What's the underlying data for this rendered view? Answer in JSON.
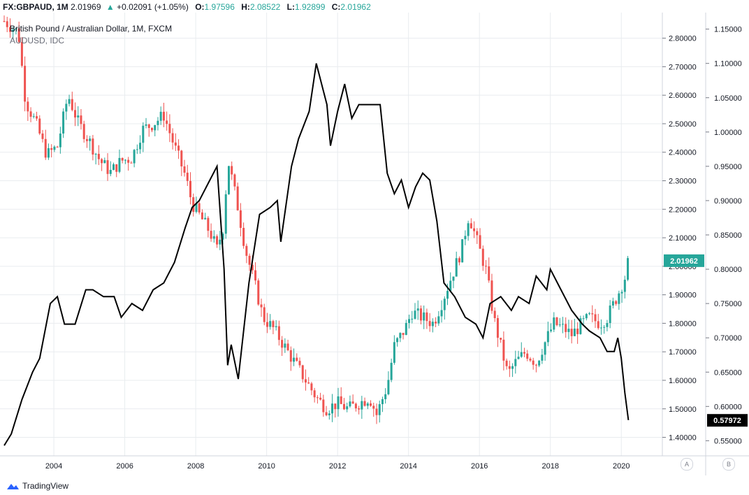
{
  "header": {
    "symbol": "FX:GBPAUD, 1M",
    "last": "2.01969",
    "change_arrow": "▲",
    "change": "+0.02091 (+1.05%)",
    "o_label": "O:",
    "o_value": "1.97596",
    "h_label": "H:",
    "h_value": "2.08522",
    "l_label": "L:",
    "l_value": "1.92899",
    "c_label": "C:",
    "c_value": "2.01962"
  },
  "legend": {
    "line1": "British Pound / Australian Dollar, 1M, FXCM",
    "line2": "AUDUSD, IDC"
  },
  "footer": {
    "brand": "TradingView",
    "icon": "tradingview-cloud-icon"
  },
  "scale_buttons": {
    "a": "A",
    "b": "B"
  },
  "colors": {
    "up": "#26a69a",
    "down": "#ef5350",
    "overlay": "#000000",
    "grid": "#e9ecef",
    "last_badge": "#26a69a"
  },
  "chart_data": {
    "type": "candlestick+line",
    "title": "British Pound / Australian Dollar, 1M, FXCM",
    "x_range": [
      2002.6,
      2021.0
    ],
    "x_ticks": [
      "2004",
      "2006",
      "2008",
      "2010",
      "2012",
      "2014",
      "2016",
      "2018",
      "2020"
    ],
    "x_tick_values": [
      2004,
      2006,
      2008,
      2010,
      2012,
      2014,
      2016,
      2018,
      2020
    ],
    "right_axis": {
      "name": "GBPAUD",
      "range": [
        1.34,
        2.88
      ],
      "ticks": [
        "1.40000",
        "1.50000",
        "1.60000",
        "1.70000",
        "1.80000",
        "1.90000",
        "2.00000",
        "2.10000",
        "2.20000",
        "2.30000",
        "2.40000",
        "2.50000",
        "2.60000",
        "2.70000",
        "2.80000"
      ],
      "tick_values": [
        1.4,
        1.5,
        1.6,
        1.7,
        1.8,
        1.9,
        2.0,
        2.1,
        2.2,
        2.3,
        2.4,
        2.5,
        2.6,
        2.7,
        2.8
      ],
      "last_label": "2.01962",
      "last_value": 2.01962
    },
    "far_right_axis": {
      "name": "AUDUSD",
      "range": [
        0.53,
        1.17
      ],
      "ticks": [
        "0.55000",
        "0.60000",
        "0.65000",
        "0.70000",
        "0.75000",
        "0.80000",
        "0.85000",
        "0.90000",
        "0.95000",
        "1.00000",
        "1.05000",
        "1.10000",
        "1.15000"
      ],
      "tick_values": [
        0.55,
        0.6,
        0.65,
        0.7,
        0.75,
        0.8,
        0.85,
        0.9,
        0.95,
        1.0,
        1.05,
        1.1,
        1.15
      ],
      "last_label": "0.57972",
      "last_value": 0.57972
    },
    "gbpaud_closes": [
      {
        "t": 2002.6,
        "c": 2.86
      },
      {
        "t": 2003.0,
        "c": 2.82
      },
      {
        "t": 2003.2,
        "c": 2.58
      },
      {
        "t": 2003.5,
        "c": 2.5
      },
      {
        "t": 2003.8,
        "c": 2.39
      },
      {
        "t": 2004.1,
        "c": 2.42
      },
      {
        "t": 2004.4,
        "c": 2.6
      },
      {
        "t": 2004.7,
        "c": 2.5
      },
      {
        "t": 2005.0,
        "c": 2.44
      },
      {
        "t": 2005.3,
        "c": 2.37
      },
      {
        "t": 2005.6,
        "c": 2.33
      },
      {
        "t": 2005.9,
        "c": 2.37
      },
      {
        "t": 2006.2,
        "c": 2.38
      },
      {
        "t": 2006.5,
        "c": 2.48
      },
      {
        "t": 2006.8,
        "c": 2.5
      },
      {
        "t": 2007.1,
        "c": 2.53
      },
      {
        "t": 2007.4,
        "c": 2.42
      },
      {
        "t": 2007.7,
        "c": 2.32
      },
      {
        "t": 2007.9,
        "c": 2.22
      },
      {
        "t": 2008.1,
        "c": 2.18
      },
      {
        "t": 2008.4,
        "c": 2.12
      },
      {
        "t": 2008.6,
        "c": 2.06
      },
      {
        "t": 2008.8,
        "c": 2.15
      },
      {
        "t": 2008.9,
        "c": 2.38
      },
      {
        "t": 2009.2,
        "c": 2.2
      },
      {
        "t": 2009.4,
        "c": 2.06
      },
      {
        "t": 2009.7,
        "c": 1.92
      },
      {
        "t": 2009.9,
        "c": 1.82
      },
      {
        "t": 2010.2,
        "c": 1.78
      },
      {
        "t": 2010.5,
        "c": 1.72
      },
      {
        "t": 2010.8,
        "c": 1.66
      },
      {
        "t": 2011.1,
        "c": 1.6
      },
      {
        "t": 2011.4,
        "c": 1.54
      },
      {
        "t": 2011.7,
        "c": 1.5
      },
      {
        "t": 2012.0,
        "c": 1.52
      },
      {
        "t": 2012.3,
        "c": 1.5
      },
      {
        "t": 2012.6,
        "c": 1.52
      },
      {
        "t": 2012.9,
        "c": 1.54
      },
      {
        "t": 2013.1,
        "c": 1.48
      },
      {
        "t": 2013.4,
        "c": 1.58
      },
      {
        "t": 2013.6,
        "c": 1.72
      },
      {
        "t": 2013.9,
        "c": 1.78
      },
      {
        "t": 2014.1,
        "c": 1.84
      },
      {
        "t": 2014.4,
        "c": 1.82
      },
      {
        "t": 2014.7,
        "c": 1.8
      },
      {
        "t": 2014.9,
        "c": 1.86
      },
      {
        "t": 2015.2,
        "c": 1.96
      },
      {
        "t": 2015.5,
        "c": 2.06
      },
      {
        "t": 2015.7,
        "c": 2.18
      },
      {
        "t": 2015.9,
        "c": 2.1
      },
      {
        "t": 2016.2,
        "c": 1.98
      },
      {
        "t": 2016.4,
        "c": 1.82
      },
      {
        "t": 2016.6,
        "c": 1.72
      },
      {
        "t": 2016.8,
        "c": 1.62
      },
      {
        "t": 2017.0,
        "c": 1.66
      },
      {
        "t": 2017.3,
        "c": 1.7
      },
      {
        "t": 2017.6,
        "c": 1.66
      },
      {
        "t": 2017.8,
        "c": 1.72
      },
      {
        "t": 2018.1,
        "c": 1.8
      },
      {
        "t": 2018.4,
        "c": 1.78
      },
      {
        "t": 2018.6,
        "c": 1.76
      },
      {
        "t": 2018.9,
        "c": 1.8
      },
      {
        "t": 2019.1,
        "c": 1.82
      },
      {
        "t": 2019.4,
        "c": 1.8
      },
      {
        "t": 2019.6,
        "c": 1.82
      },
      {
        "t": 2019.9,
        "c": 1.9
      },
      {
        "t": 2020.1,
        "c": 1.96
      },
      {
        "t": 2020.2,
        "c": 2.02
      }
    ],
    "audusd": [
      {
        "t": 2002.6,
        "v": 0.543
      },
      {
        "t": 2002.8,
        "v": 0.56
      },
      {
        "t": 2003.1,
        "v": 0.61
      },
      {
        "t": 2003.4,
        "v": 0.65
      },
      {
        "t": 2003.6,
        "v": 0.67
      },
      {
        "t": 2003.9,
        "v": 0.75
      },
      {
        "t": 2004.1,
        "v": 0.76
      },
      {
        "t": 2004.3,
        "v": 0.72
      },
      {
        "t": 2004.6,
        "v": 0.72
      },
      {
        "t": 2004.9,
        "v": 0.77
      },
      {
        "t": 2005.1,
        "v": 0.77
      },
      {
        "t": 2005.4,
        "v": 0.76
      },
      {
        "t": 2005.7,
        "v": 0.76
      },
      {
        "t": 2005.9,
        "v": 0.73
      },
      {
        "t": 2006.2,
        "v": 0.75
      },
      {
        "t": 2006.5,
        "v": 0.74
      },
      {
        "t": 2006.8,
        "v": 0.77
      },
      {
        "t": 2007.1,
        "v": 0.78
      },
      {
        "t": 2007.4,
        "v": 0.81
      },
      {
        "t": 2007.7,
        "v": 0.86
      },
      {
        "t": 2007.9,
        "v": 0.89
      },
      {
        "t": 2008.1,
        "v": 0.9
      },
      {
        "t": 2008.4,
        "v": 0.93
      },
      {
        "t": 2008.6,
        "v": 0.95
      },
      {
        "t": 2008.8,
        "v": 0.8
      },
      {
        "t": 2008.9,
        "v": 0.66
      },
      {
        "t": 2009.0,
        "v": 0.69
      },
      {
        "t": 2009.2,
        "v": 0.64
      },
      {
        "t": 2009.5,
        "v": 0.78
      },
      {
        "t": 2009.8,
        "v": 0.88
      },
      {
        "t": 2010.1,
        "v": 0.89
      },
      {
        "t": 2010.3,
        "v": 0.9
      },
      {
        "t": 2010.4,
        "v": 0.84
      },
      {
        "t": 2010.7,
        "v": 0.95
      },
      {
        "t": 2010.9,
        "v": 0.99
      },
      {
        "t": 2011.2,
        "v": 1.03
      },
      {
        "t": 2011.4,
        "v": 1.1
      },
      {
        "t": 2011.6,
        "v": 1.06
      },
      {
        "t": 2011.7,
        "v": 1.04
      },
      {
        "t": 2011.8,
        "v": 0.98
      },
      {
        "t": 2012.0,
        "v": 1.03
      },
      {
        "t": 2012.2,
        "v": 1.07
      },
      {
        "t": 2012.4,
        "v": 1.02
      },
      {
        "t": 2012.6,
        "v": 1.04
      },
      {
        "t": 2012.8,
        "v": 1.04
      },
      {
        "t": 2013.0,
        "v": 1.04
      },
      {
        "t": 2013.2,
        "v": 1.04
      },
      {
        "t": 2013.4,
        "v": 0.94
      },
      {
        "t": 2013.6,
        "v": 0.91
      },
      {
        "t": 2013.8,
        "v": 0.93
      },
      {
        "t": 2014.0,
        "v": 0.89
      },
      {
        "t": 2014.2,
        "v": 0.92
      },
      {
        "t": 2014.4,
        "v": 0.94
      },
      {
        "t": 2014.6,
        "v": 0.93
      },
      {
        "t": 2014.8,
        "v": 0.87
      },
      {
        "t": 2015.0,
        "v": 0.78
      },
      {
        "t": 2015.3,
        "v": 0.76
      },
      {
        "t": 2015.6,
        "v": 0.73
      },
      {
        "t": 2015.9,
        "v": 0.72
      },
      {
        "t": 2016.1,
        "v": 0.7
      },
      {
        "t": 2016.3,
        "v": 0.75
      },
      {
        "t": 2016.6,
        "v": 0.76
      },
      {
        "t": 2016.9,
        "v": 0.74
      },
      {
        "t": 2017.1,
        "v": 0.76
      },
      {
        "t": 2017.4,
        "v": 0.75
      },
      {
        "t": 2017.6,
        "v": 0.79
      },
      {
        "t": 2017.9,
        "v": 0.77
      },
      {
        "t": 2018.0,
        "v": 0.8
      },
      {
        "t": 2018.3,
        "v": 0.77
      },
      {
        "t": 2018.6,
        "v": 0.74
      },
      {
        "t": 2018.9,
        "v": 0.72
      },
      {
        "t": 2019.1,
        "v": 0.71
      },
      {
        "t": 2019.4,
        "v": 0.7
      },
      {
        "t": 2019.6,
        "v": 0.68
      },
      {
        "t": 2019.8,
        "v": 0.68
      },
      {
        "t": 2019.9,
        "v": 0.7
      },
      {
        "t": 2020.0,
        "v": 0.67
      },
      {
        "t": 2020.1,
        "v": 0.62
      },
      {
        "t": 2020.2,
        "v": 0.58
      }
    ]
  }
}
